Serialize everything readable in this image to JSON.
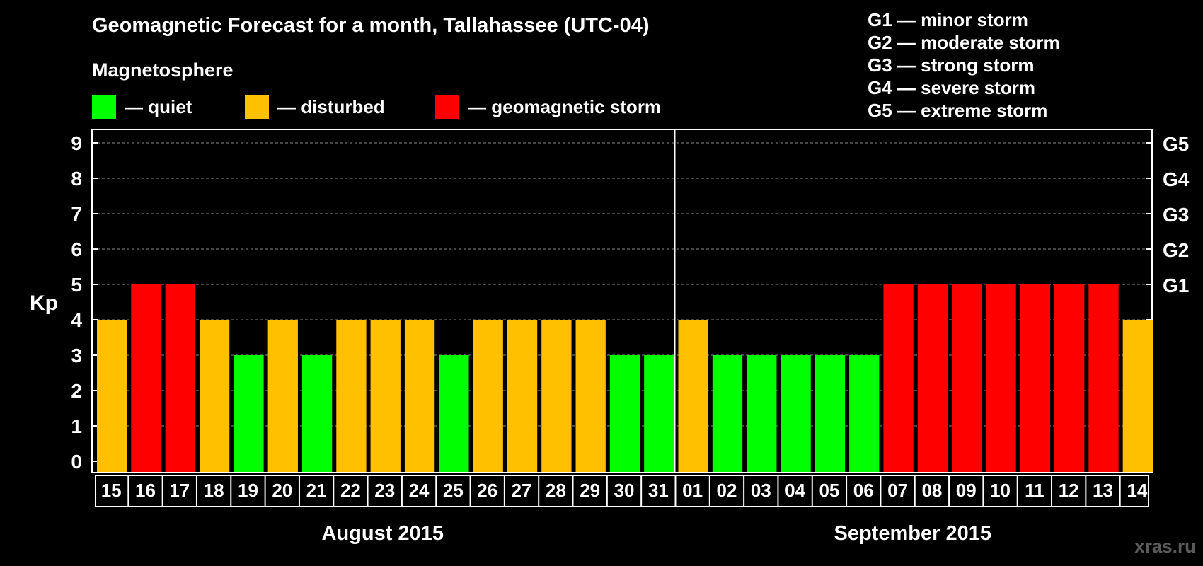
{
  "header": {
    "title": "Geomagnetic Forecast for a month, Tallahassee (UTC-04)",
    "subtitle": "Magnetosphere"
  },
  "legend": [
    {
      "color": "#00ff00",
      "label": "— quiet"
    },
    {
      "color": "#ffc000",
      "label": "— disturbed"
    },
    {
      "color": "#ff0000",
      "label": "— geomagnetic storm"
    }
  ],
  "storm_legend": [
    "G1 — minor storm",
    "G2 — moderate storm",
    "G3 — strong storm",
    "G4 — severe storm",
    "G5 — extreme storm"
  ],
  "watermark": "xras.ru",
  "chart_data": {
    "type": "bar",
    "ylabel": "Kp",
    "ylim": [
      0,
      9
    ],
    "yticks": [
      "0",
      "1",
      "2",
      "3",
      "4",
      "5",
      "6",
      "7",
      "8",
      "9"
    ],
    "right_axis_labels": [
      {
        "kp": 5,
        "label": "G1"
      },
      {
        "kp": 6,
        "label": "G2"
      },
      {
        "kp": 7,
        "label": "G3"
      },
      {
        "kp": 8,
        "label": "G4"
      },
      {
        "kp": 9,
        "label": "G5"
      }
    ],
    "grid": true,
    "categories": [
      "15",
      "16",
      "17",
      "18",
      "19",
      "20",
      "21",
      "22",
      "23",
      "24",
      "25",
      "26",
      "27",
      "28",
      "29",
      "30",
      "31",
      "01",
      "02",
      "03",
      "04",
      "05",
      "06",
      "07",
      "08",
      "09",
      "10",
      "11",
      "12",
      "13",
      "14"
    ],
    "values": [
      4,
      5,
      5,
      4,
      3,
      4,
      3,
      4,
      4,
      4,
      3,
      4,
      4,
      4,
      4,
      3,
      3,
      4,
      3,
      3,
      3,
      3,
      3,
      5,
      5,
      5,
      5,
      5,
      5,
      5,
      4
    ],
    "colors": {
      "quiet": "#00ff00",
      "disturbed": "#ffc000",
      "storm": "#ff0000"
    },
    "months": [
      {
        "label": "August 2015",
        "start": 0,
        "count": 17
      },
      {
        "label": "September 2015",
        "start": 17,
        "count": 14
      }
    ]
  }
}
